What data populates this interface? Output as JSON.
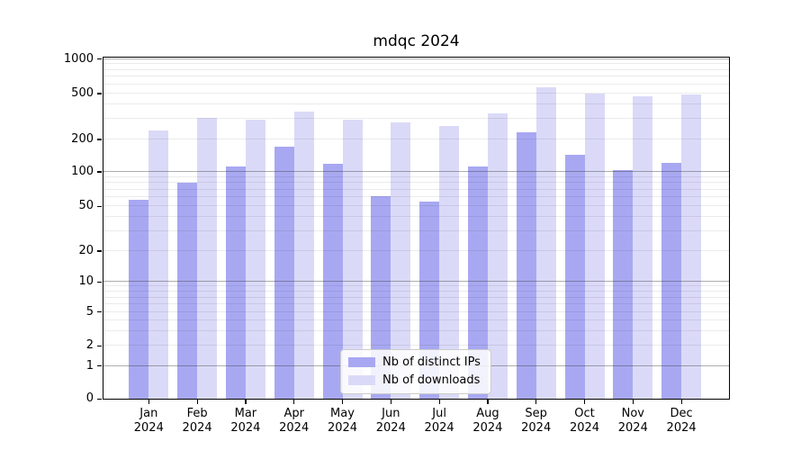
{
  "chart_data": {
    "type": "bar",
    "title": "mdqc 2024",
    "categories": [
      "Jan",
      "Feb",
      "Mar",
      "Apr",
      "May",
      "Jun",
      "Jul",
      "Aug",
      "Sep",
      "Oct",
      "Nov",
      "Dec"
    ],
    "x_year_suffix": "2024",
    "series": [
      {
        "name": "Nb of distinct IPs",
        "color": "#a8a8f2",
        "values": [
          57,
          81,
          112,
          171,
          120,
          61,
          55,
          113,
          231,
          143,
          104,
          121
        ]
      },
      {
        "name": "Nb of downloads",
        "color": "#dadaf8",
        "values": [
          240,
          308,
          296,
          349,
          298,
          280,
          261,
          340,
          564,
          498,
          470,
          493
        ]
      }
    ],
    "yscale": "symlog",
    "yticks": [
      0,
      1,
      2,
      5,
      10,
      20,
      50,
      100,
      200,
      500,
      1000
    ],
    "ylim": [
      0,
      1000
    ],
    "grid": true,
    "legend_position": "lower center"
  }
}
